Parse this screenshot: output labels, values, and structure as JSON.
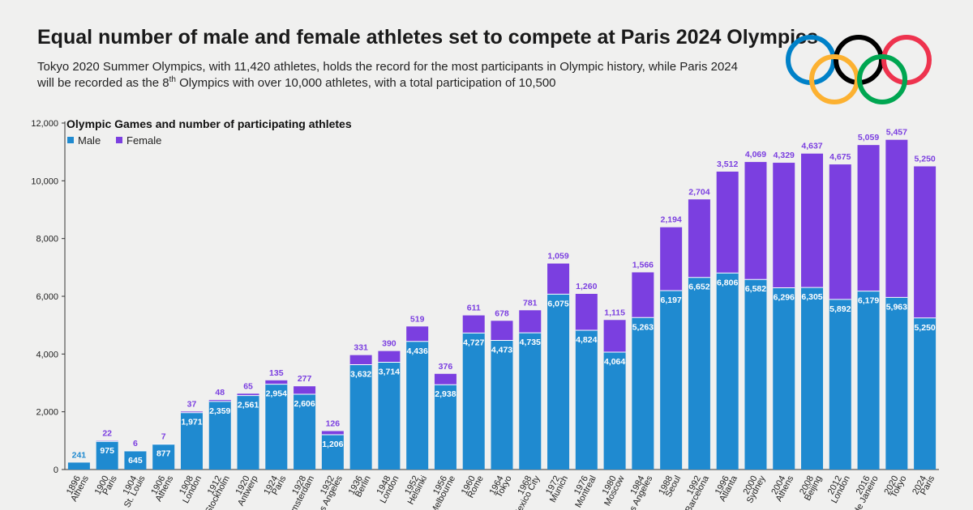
{
  "header": {
    "title": "Equal number of male and female athletes set to compete at Paris 2024 Olympics",
    "subtitle_part1": "Tokyo 2020 Summer Olympics, with 11,420 athletes, holds the record for the most participants in Olympic history, while Paris 2024 will be recorded as the 8",
    "subtitle_sup": "th",
    "subtitle_part2": " Olympics with over 10,000 athletes, with a total participation of 10,500"
  },
  "logo": {
    "ring_colors": [
      "#0081c8",
      "#000000",
      "#ee334e",
      "#fcb131",
      "#00a651"
    ]
  },
  "chart_data": {
    "type": "bar",
    "stacked": true,
    "title": "Olympic Games and number of participating athletes",
    "categories": [
      {
        "year": "1896",
        "city": "Athens"
      },
      {
        "year": "1900",
        "city": "Paris"
      },
      {
        "year": "1904",
        "city": "St. Louis"
      },
      {
        "year": "1906",
        "city": "Athens"
      },
      {
        "year": "1908",
        "city": "London"
      },
      {
        "year": "1912",
        "city": "Stockholm"
      },
      {
        "year": "1920",
        "city": "Antwerp"
      },
      {
        "year": "1924",
        "city": "Paris"
      },
      {
        "year": "1928",
        "city": "Amsterdam"
      },
      {
        "year": "1932",
        "city": "Los Angeles"
      },
      {
        "year": "1936",
        "city": "Berlin"
      },
      {
        "year": "1948",
        "city": "London"
      },
      {
        "year": "1952",
        "city": "Helsinki"
      },
      {
        "year": "1956",
        "city": "Melbourne"
      },
      {
        "year": "1960",
        "city": "Rome"
      },
      {
        "year": "1964",
        "city": "Tokyo"
      },
      {
        "year": "1968",
        "city": "Mexico City"
      },
      {
        "year": "1972",
        "city": "Munich"
      },
      {
        "year": "1976",
        "city": "Montreal"
      },
      {
        "year": "1980",
        "city": "Moscow"
      },
      {
        "year": "1984",
        "city": "Los Angeles"
      },
      {
        "year": "1988",
        "city": "Seoul"
      },
      {
        "year": "1992",
        "city": "Barcelona"
      },
      {
        "year": "1996",
        "city": "Atlanta"
      },
      {
        "year": "2000",
        "city": "Sydney"
      },
      {
        "year": "2004",
        "city": "Athens"
      },
      {
        "year": "2008",
        "city": "Beijing"
      },
      {
        "year": "2012",
        "city": "London"
      },
      {
        "year": "2016",
        "city": "Rio de Janeiro"
      },
      {
        "year": "2020",
        "city": "Tokyo"
      },
      {
        "year": "2024",
        "city": "Paris"
      }
    ],
    "series": [
      {
        "name": "Male",
        "color": "#1f8ad0",
        "values": [
          241,
          975,
          645,
          877,
          1971,
          2359,
          2561,
          2954,
          2606,
          1206,
          3632,
          3714,
          4436,
          2938,
          4727,
          4473,
          4735,
          6075,
          4824,
          4064,
          5263,
          6197,
          6652,
          6806,
          6582,
          6296,
          6305,
          5892,
          6179,
          5963,
          5250
        ],
        "labels": [
          "241",
          "975",
          "645",
          "877",
          "1,971",
          "2,359",
          "2,561",
          "2,954",
          "2,606",
          "1,206",
          "3,632",
          "3,714",
          "4,436",
          "2,938",
          "4,727",
          "4,473",
          "4,735",
          "6,075",
          "4,824",
          "4,064",
          "5,263",
          "6,197",
          "6,652",
          "6,806",
          "6,582",
          "6,296",
          "6,305",
          "5,892",
          "6,179",
          "5,963",
          "5,250"
        ]
      },
      {
        "name": "Female",
        "color": "#7b3fe0",
        "values": [
          0,
          22,
          6,
          7,
          37,
          48,
          65,
          135,
          277,
          126,
          331,
          390,
          519,
          376,
          611,
          678,
          781,
          1059,
          1260,
          1115,
          1566,
          2194,
          2704,
          3512,
          4069,
          4329,
          4637,
          4675,
          5059,
          5457,
          5250
        ],
        "labels": [
          "",
          "22",
          "6",
          "7",
          "37",
          "48",
          "65",
          "135",
          "277",
          "126",
          "331",
          "390",
          "519",
          "376",
          "611",
          "678",
          "781",
          "1,059",
          "1,260",
          "1,115",
          "1,566",
          "2,194",
          "2,704",
          "3,512",
          "4,069",
          "4,329",
          "4,637",
          "4,675",
          "5,059",
          "5,457",
          "5,250"
        ]
      }
    ],
    "ylim": [
      0,
      12000
    ],
    "yticks": [
      "0",
      "2,000",
      "4,000",
      "6,000",
      "8,000",
      "10,000",
      "12,000"
    ],
    "grid": false,
    "legend_position": "top-left"
  }
}
